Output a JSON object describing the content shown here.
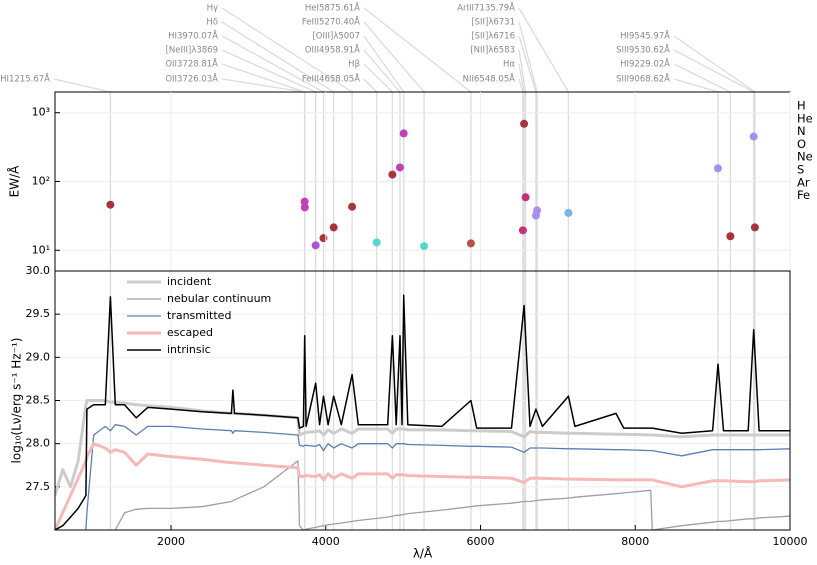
{
  "chart_data": [
    {
      "type": "scatter",
      "ylabel": "EW/Å",
      "log_y": true,
      "grid": true,
      "xlim": [
        500,
        10000
      ],
      "ylim": [
        5,
        2000
      ],
      "yticks": [
        {
          "value": 10,
          "label": "10¹"
        },
        {
          "value": 100,
          "label": "10²"
        },
        {
          "value": 1000,
          "label": "10³"
        }
      ],
      "legend": "right",
      "line_labels": [
        {
          "text": "Hγ",
          "wavelength": 4340
        },
        {
          "text": "Hδ",
          "wavelength": 4102
        },
        {
          "text": "HI3970.07Å",
          "wavelength": 3970.07
        },
        {
          "text": "[NeIII]λ3869",
          "wavelength": 3869
        },
        {
          "text": "OII3728.81Å",
          "wavelength": 3728.81
        },
        {
          "text": "OII3726.03Å",
          "wavelength": 3726.03
        },
        {
          "text": "HeI5875.61Å",
          "wavelength": 5875.61
        },
        {
          "text": "FeIII5270.40Å",
          "wavelength": 5270.4
        },
        {
          "text": "[OIII]λ5007",
          "wavelength": 5007
        },
        {
          "text": "OIII4958.91Å",
          "wavelength": 4958.91
        },
        {
          "text": "Hβ",
          "wavelength": 4861
        },
        {
          "text": "FeIII4658.05Å",
          "wavelength": 4658.05
        },
        {
          "text": "ArIII7135.79Å",
          "wavelength": 7135.79
        },
        {
          "text": "[SII]λ6731",
          "wavelength": 6731
        },
        {
          "text": "[SII]λ6716",
          "wavelength": 6716
        },
        {
          "text": "[NII]λ6583",
          "wavelength": 6583
        },
        {
          "text": "Hα",
          "wavelength": 6563
        },
        {
          "text": "NII6548.05Å",
          "wavelength": 6548.05
        },
        {
          "text": "HI9545.97Å",
          "wavelength": 9545.97
        },
        {
          "text": "SIII9530.62Å",
          "wavelength": 9530.62
        },
        {
          "text": "HI9229.02Å",
          "wavelength": 9229.02
        },
        {
          "text": "SIII9068.62Å",
          "wavelength": 9068.62
        },
        {
          "text": "HI1215.67Å",
          "wavelength": 1215.67
        }
      ],
      "series": [
        {
          "name": "H",
          "color": "#a8343a",
          "x": [
            1215.67,
            3970.07,
            4102,
            4340,
            4861,
            6563,
            9229.02,
            9545.97
          ],
          "values": [
            46,
            15,
            21.5,
            43,
            126,
            690,
            16,
            21.5
          ]
        },
        {
          "name": "He",
          "color": "#b9504a",
          "x": [
            5875.61
          ],
          "values": [
            12.6
          ]
        },
        {
          "name": "N",
          "color": "#c4317a",
          "x": [
            6548.05,
            6583
          ],
          "values": [
            19.5,
            59
          ]
        },
        {
          "name": "O",
          "color": "#c23fb8",
          "x": [
            3726.03,
            3728.81,
            4958.91,
            5007
          ],
          "values": [
            51,
            42,
            160,
            500
          ]
        },
        {
          "name": "Ne",
          "color": "#a855d6",
          "x": [
            3869
          ],
          "values": [
            11.8
          ]
        },
        {
          "name": "S",
          "color": "#a98ef2",
          "x": [
            6716,
            6731,
            9068.62,
            9530.62
          ],
          "values": [
            32,
            38,
            155,
            450
          ]
        },
        {
          "name": "Ar",
          "color": "#74b4f0",
          "x": [
            7135.79
          ],
          "values": [
            35
          ]
        },
        {
          "name": "Fe",
          "color": "#55d6cf",
          "x": [
            4658.05,
            5270.4
          ],
          "values": [
            13,
            11.5
          ]
        }
      ]
    },
    {
      "type": "line",
      "xlabel": "λ/Å",
      "ylabel": "log₁₀(Lν/erg s⁻¹ Hz⁻¹)",
      "grid": true,
      "legend": "upper left",
      "xlim": [
        500,
        10000
      ],
      "ylim": [
        27.0,
        30.0
      ],
      "xticks": [
        2000,
        4000,
        6000,
        8000,
        10000
      ],
      "yticks": [
        27.5,
        {
          "value": 28,
          "label": "28.0"
        },
        28.5,
        {
          "value": 29,
          "label": "29.0"
        },
        29.5,
        {
          "value": 30,
          "label": "30.0"
        }
      ],
      "x": [
        500,
        600,
        700,
        800,
        900,
        912,
        1000,
        1150,
        1216,
        1280,
        1400,
        1550,
        1700,
        2000,
        2400,
        2780,
        2800,
        2820,
        3200,
        3640,
        3660,
        3710,
        3727,
        3745,
        3869,
        3920,
        3970,
        4030,
        4102,
        4200,
        4340,
        4420,
        4800,
        4861,
        4910,
        4959,
        4985,
        5007,
        5060,
        5500,
        5876,
        5950,
        6400,
        6563,
        6640,
        6716,
        6800,
        7136,
        7220,
        7751,
        7850,
        8200,
        8220,
        8600,
        9000,
        9069,
        9140,
        9460,
        9531,
        9600,
        10000
      ],
      "series": [
        {
          "name": "incident",
          "color": "#cccccc",
          "values": [
            27.4,
            27.7,
            27.5,
            27.8,
            28.45,
            28.5,
            28.5,
            28.5,
            28.48,
            28.48,
            28.47,
            28.45,
            28.44,
            28.42,
            28.38,
            28.35,
            28.35,
            28.35,
            28.33,
            28.3,
            28.1,
            28.12,
            28.12,
            28.13,
            28.14,
            28.15,
            28.1,
            28.16,
            28.12,
            28.17,
            28.12,
            28.17,
            28.17,
            28.12,
            28.17,
            28.17,
            28.17,
            28.17,
            28.16,
            28.16,
            28.15,
            28.15,
            28.14,
            28.08,
            28.14,
            28.13,
            28.13,
            28.12,
            28.12,
            28.11,
            28.11,
            28.1,
            28.1,
            28.08,
            28.1,
            28.1,
            28.1,
            28.1,
            28.1,
            28.1,
            28.1
          ]
        },
        {
          "name": "nebular continuum",
          "color": "#a09cb0",
          "values": [
            null,
            null,
            null,
            null,
            null,
            null,
            null,
            null,
            null,
            27.0,
            27.2,
            27.24,
            27.25,
            27.25,
            27.27,
            27.33,
            27.34,
            27.35,
            27.5,
            27.8,
            27.05,
            27.0,
            27.0,
            27.01,
            27.03,
            27.04,
            27.05,
            27.06,
            27.07,
            27.08,
            27.1,
            27.11,
            27.15,
            27.16,
            27.17,
            27.17,
            27.18,
            27.18,
            27.19,
            27.23,
            27.27,
            27.28,
            27.31,
            27.33,
            27.33,
            27.34,
            27.35,
            27.37,
            27.38,
            27.42,
            27.43,
            27.46,
            27.0,
            27.05,
            27.09,
            27.1,
            27.1,
            27.13,
            27.13,
            27.14,
            27.16
          ]
        },
        {
          "name": "transmitted",
          "color": "#5b7fb5",
          "values": [
            null,
            null,
            null,
            null,
            27.0,
            27.2,
            28.1,
            28.2,
            28.15,
            28.22,
            28.2,
            28.1,
            28.2,
            28.2,
            28.17,
            28.15,
            28.12,
            28.15,
            28.13,
            28.1,
            27.98,
            27.97,
            27.98,
            27.98,
            27.97,
            27.99,
            27.92,
            28.0,
            27.95,
            28.0,
            27.95,
            28.0,
            28.0,
            27.95,
            28.0,
            28.0,
            28.0,
            28.0,
            27.99,
            27.98,
            27.97,
            27.97,
            27.96,
            27.9,
            27.95,
            27.95,
            27.95,
            27.94,
            27.94,
            27.93,
            27.93,
            27.92,
            27.92,
            27.86,
            27.93,
            27.93,
            27.93,
            27.93,
            27.93,
            27.93,
            27.94
          ]
        },
        {
          "name": "escaped",
          "color": "#f7b8b8",
          "values": [
            27.0,
            27.2,
            27.4,
            27.6,
            27.8,
            27.85,
            28.0,
            27.95,
            27.9,
            27.93,
            27.9,
            27.75,
            27.88,
            27.85,
            27.82,
            27.78,
            27.78,
            27.78,
            27.75,
            27.72,
            27.62,
            27.62,
            27.63,
            27.63,
            27.62,
            27.64,
            27.58,
            27.65,
            27.6,
            27.65,
            27.6,
            27.65,
            27.65,
            27.6,
            27.64,
            27.64,
            27.64,
            27.64,
            27.63,
            27.62,
            27.61,
            27.61,
            27.6,
            27.55,
            27.6,
            27.6,
            27.6,
            27.59,
            27.59,
            27.58,
            27.58,
            27.58,
            27.58,
            27.5,
            27.57,
            27.57,
            27.57,
            27.56,
            27.56,
            27.57,
            27.58
          ]
        },
        {
          "name": "intrinsic",
          "color": "#000000",
          "values": [
            27.0,
            27.05,
            27.15,
            27.25,
            27.4,
            28.4,
            28.45,
            28.45,
            29.7,
            28.45,
            28.45,
            28.3,
            28.42,
            28.4,
            28.37,
            28.35,
            28.62,
            28.35,
            28.33,
            28.3,
            28.18,
            28.2,
            29.25,
            28.2,
            28.7,
            28.22,
            28.55,
            28.22,
            28.55,
            28.22,
            28.8,
            28.22,
            28.22,
            29.25,
            28.22,
            29.25,
            28.22,
            29.72,
            28.22,
            28.2,
            28.5,
            28.18,
            28.18,
            29.6,
            28.2,
            28.4,
            28.2,
            28.55,
            28.2,
            28.35,
            28.18,
            28.18,
            28.18,
            28.12,
            28.15,
            28.92,
            28.15,
            28.15,
            29.32,
            28.15,
            28.15
          ]
        }
      ]
    }
  ]
}
